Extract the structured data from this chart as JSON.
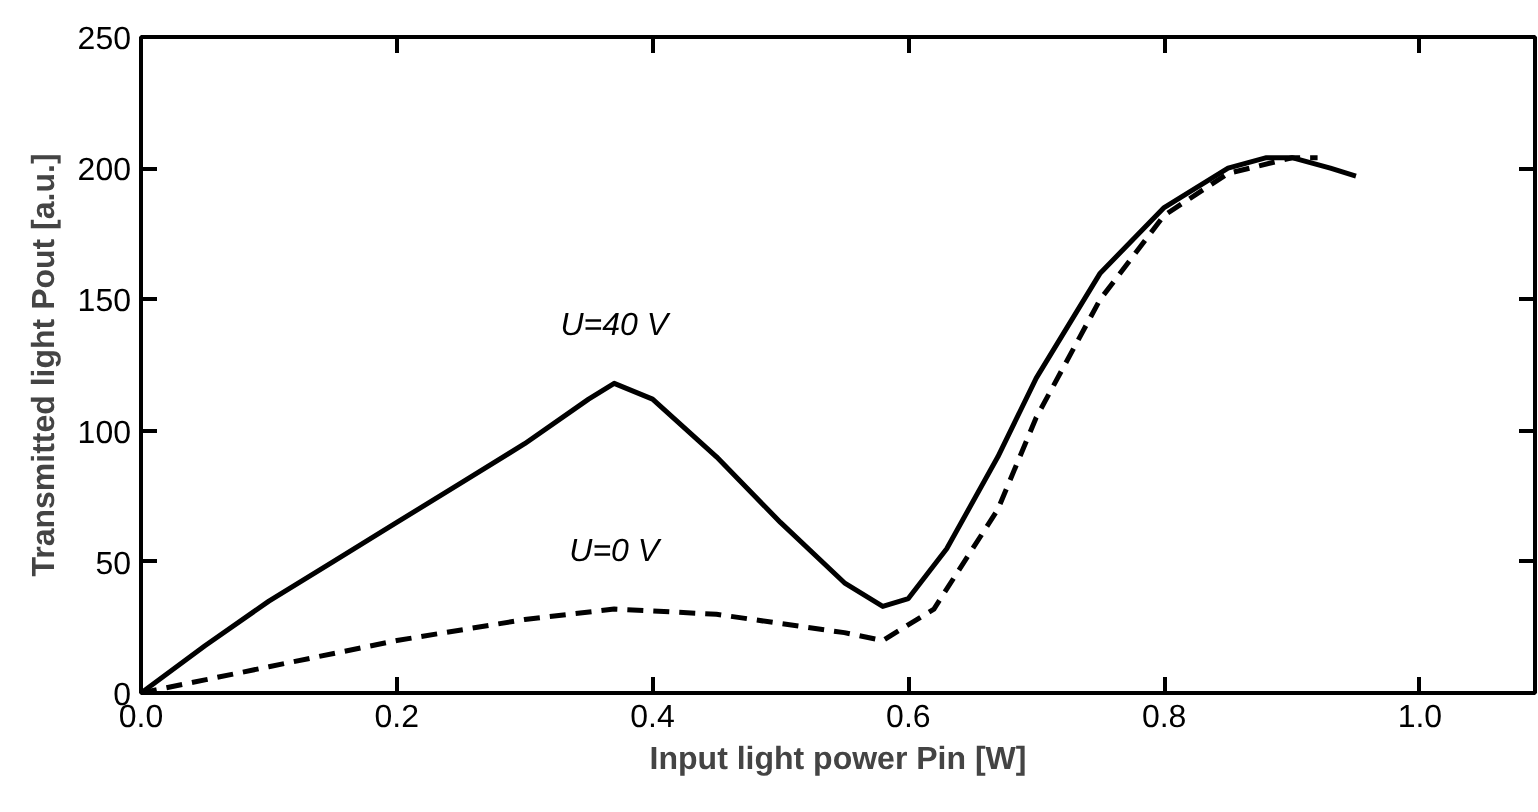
{
  "chart_data": {
    "type": "line",
    "xlabel": "Input light power Pin [W]",
    "ylabel": "Transmitted light Pout [a.u.]",
    "xlim": [
      0,
      1.09
    ],
    "ylim": [
      0,
      250
    ],
    "xticks": [
      {
        "value": 0,
        "label": "0.0"
      },
      {
        "value": 0.2,
        "label": "0.2"
      },
      {
        "value": 0.4,
        "label": "0.4"
      },
      {
        "value": 0.6,
        "label": "0.6"
      },
      {
        "value": 0.8,
        "label": "0.8"
      },
      {
        "value": 1.0,
        "label": "1.0"
      }
    ],
    "yticks": [
      0,
      50,
      100,
      150,
      200,
      250
    ],
    "grid": false,
    "series": [
      {
        "name": "U=40 V",
        "color": "#000000",
        "line_style": "solid",
        "x": [
          0,
          0.05,
          0.1,
          0.15,
          0.2,
          0.25,
          0.3,
          0.35,
          0.37,
          0.4,
          0.45,
          0.5,
          0.55,
          0.58,
          0.6,
          0.63,
          0.67,
          0.7,
          0.75,
          0.8,
          0.85,
          0.88,
          0.9,
          0.93,
          0.95
        ],
        "values": [
          0,
          18,
          35,
          50,
          65,
          80,
          95,
          112,
          118,
          112,
          90,
          65,
          42,
          33,
          36,
          55,
          90,
          120,
          160,
          185,
          200,
          204,
          204,
          200,
          197
        ]
      },
      {
        "name": "U=0 V",
        "color": "#000000",
        "line_style": "dashed",
        "x": [
          0,
          0.05,
          0.1,
          0.2,
          0.3,
          0.37,
          0.45,
          0.55,
          0.58,
          0.62,
          0.67,
          0.7,
          0.75,
          0.8,
          0.85,
          0.9,
          0.92
        ],
        "values": [
          0,
          5,
          10,
          20,
          28,
          32,
          30,
          23,
          20,
          32,
          70,
          105,
          150,
          182,
          198,
          204,
          204
        ]
      }
    ]
  }
}
